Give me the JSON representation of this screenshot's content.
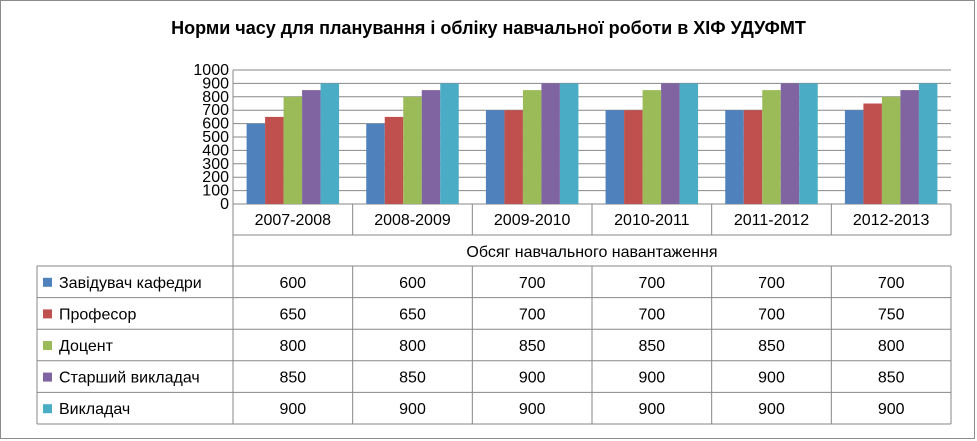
{
  "chart_data": {
    "type": "bar",
    "title": "Норми часу для планування і обліку навчальної роботи в ХІФ УДУФМТ",
    "xlabel": "Обсяг навчального навантаження",
    "ylabel": "",
    "ylim": [
      0,
      1000
    ],
    "yticks": [
      0,
      100,
      200,
      300,
      400,
      500,
      600,
      700,
      800,
      900,
      1000
    ],
    "categories": [
      "2007-2008",
      "2008-2009",
      "2009-2010",
      "2010-2011",
      "2011-2012",
      "2012-2013"
    ],
    "series": [
      {
        "name": "Завідувач кафедри",
        "color": "#4f81bd",
        "values": [
          600,
          600,
          700,
          700,
          700,
          700
        ]
      },
      {
        "name": "Професор",
        "color": "#c0504d",
        "values": [
          650,
          650,
          700,
          700,
          700,
          750
        ]
      },
      {
        "name": "Доцент",
        "color": "#9bbb59",
        "values": [
          800,
          800,
          850,
          850,
          850,
          800
        ]
      },
      {
        "name": "Старший викладач",
        "color": "#8064a2",
        "values": [
          850,
          850,
          900,
          900,
          900,
          850
        ]
      },
      {
        "name": "Викладач",
        "color": "#4bacc6",
        "values": [
          900,
          900,
          900,
          900,
          900,
          900
        ]
      }
    ],
    "grid": true,
    "legend": "data-table"
  }
}
